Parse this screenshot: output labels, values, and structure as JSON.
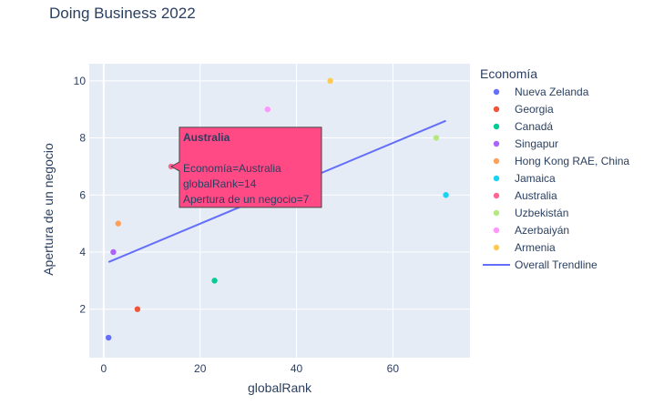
{
  "chart_data": {
    "type": "scatter",
    "title": "Doing Business 2022",
    "xlabel": "globalRank",
    "ylabel": "Apertura de un negocio",
    "xlim": [
      -3,
      76
    ],
    "ylim": [
      0.3,
      10.6
    ],
    "xticks": [
      0,
      20,
      40,
      60
    ],
    "yticks": [
      2,
      4,
      6,
      8,
      10
    ],
    "grid": true,
    "legend_title": "Economía",
    "legend_position": "right",
    "series": [
      {
        "name": "Nueva Zelanda",
        "color": "#636efa",
        "x": [
          1
        ],
        "y": [
          1
        ]
      },
      {
        "name": "Georgia",
        "color": "#EF553B",
        "x": [
          7
        ],
        "y": [
          2
        ]
      },
      {
        "name": "Canadá",
        "color": "#00cc96",
        "x": [
          23
        ],
        "y": [
          3
        ]
      },
      {
        "name": "Singapur",
        "color": "#ab63fa",
        "x": [
          2
        ],
        "y": [
          4
        ]
      },
      {
        "name": "Hong Kong RAE, China",
        "color": "#FFA15A",
        "x": [
          3
        ],
        "y": [
          5
        ]
      },
      {
        "name": "Jamaica",
        "color": "#19d3f3",
        "x": [
          71
        ],
        "y": [
          6
        ]
      },
      {
        "name": "Australia",
        "color": "#FF6692",
        "x": [
          14
        ],
        "y": [
          7
        ]
      },
      {
        "name": "Uzbekistán",
        "color": "#B6E880",
        "x": [
          69
        ],
        "y": [
          8
        ]
      },
      {
        "name": "Azerbaiyán",
        "color": "#FF97FF",
        "x": [
          34
        ],
        "y": [
          9
        ]
      },
      {
        "name": "Armenia",
        "color": "#FECB52",
        "x": [
          47
        ],
        "y": [
          10
        ]
      }
    ],
    "trendline": {
      "name": "Overall Trendline",
      "color": "#636efa",
      "x": [
        1,
        71
      ],
      "y": [
        3.65,
        8.6
      ]
    },
    "hover": {
      "series_index": 6,
      "header": "Australia",
      "lines": [
        "Economía=Australia",
        "globalRank=14",
        "Apertura de un negocio=7"
      ],
      "background": "#FF4A86"
    }
  }
}
